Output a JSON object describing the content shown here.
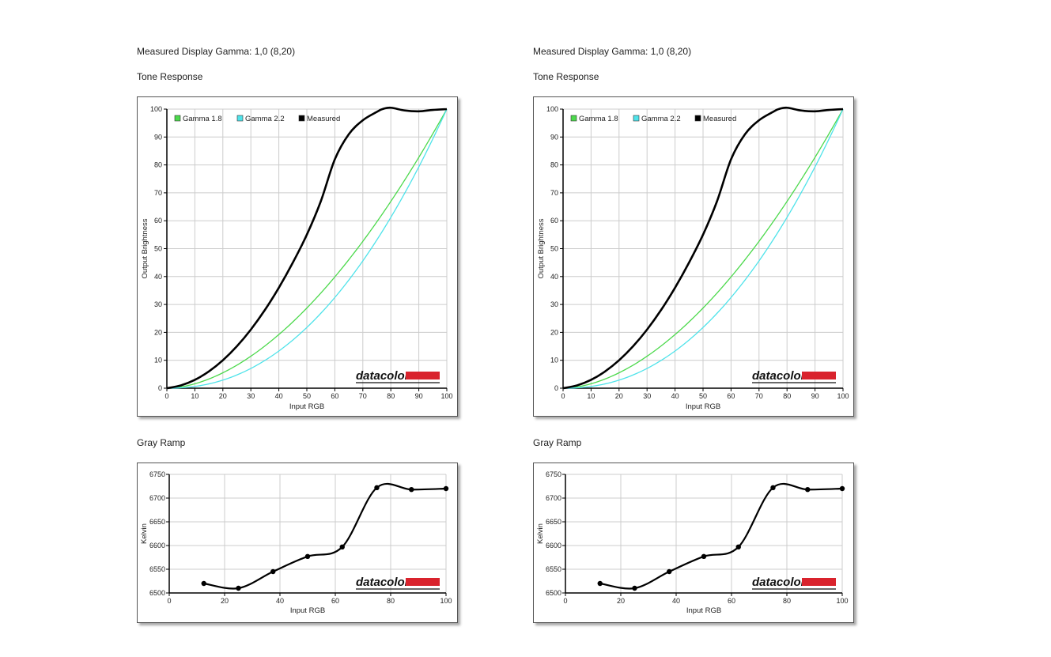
{
  "panels": [
    {
      "gamma_text": "Measured Display Gamma: 1,0 (8,20)",
      "tone_title": "Tone Response",
      "gray_title": "Gray Ramp"
    },
    {
      "gamma_text": "Measured Display Gamma: 1,0 (8,20)",
      "tone_title": "Tone Response",
      "gray_title": "Gray Ramp"
    }
  ],
  "logo_text": "datacolor",
  "colors": {
    "gamma18": "#4cd94c",
    "gamma22": "#4fe3ea",
    "measured": "#000000",
    "grid": "#cccccc",
    "logo_red": "#d9232d"
  },
  "chart_data": [
    {
      "type": "line",
      "xlabel": "Input RGB",
      "ylabel": "Output Brightness",
      "xlim": [
        0,
        100
      ],
      "ylim": [
        0,
        100
      ],
      "xticks": [
        0,
        10,
        20,
        30,
        40,
        50,
        60,
        70,
        80,
        90,
        100
      ],
      "yticks": [
        0,
        10,
        20,
        30,
        40,
        50,
        60,
        70,
        80,
        90,
        100
      ],
      "grid": true,
      "legend_position": "top-left",
      "series": [
        {
          "name": "Gamma 1.8",
          "gamma": 1.8
        },
        {
          "name": "Gamma 2.2",
          "gamma": 2.2
        },
        {
          "name": "Measured",
          "x": [
            0,
            5,
            10,
            15,
            20,
            25,
            30,
            35,
            40,
            45,
            50,
            55,
            60,
            65,
            70,
            75,
            77,
            80,
            85,
            90,
            95,
            100
          ],
          "y": [
            0,
            1,
            3,
            6,
            10,
            15,
            21,
            28,
            36,
            45,
            55,
            67,
            82,
            91,
            96,
            99,
            100,
            100.5,
            99.5,
            99.2,
            99.7,
            100
          ]
        }
      ]
    },
    {
      "type": "line",
      "xlabel": "Input RGB",
      "ylabel": "Kelvin",
      "xlim": [
        0,
        100
      ],
      "ylim": [
        6500,
        6750
      ],
      "xticks": [
        0,
        20,
        40,
        60,
        80,
        100
      ],
      "yticks": [
        6500,
        6550,
        6600,
        6650,
        6700,
        6750
      ],
      "grid": true,
      "series": [
        {
          "x": [
            12.5,
            25,
            37.5,
            50,
            62.5,
            75,
            87.5,
            100
          ],
          "y": [
            6520,
            6510,
            6545,
            6577,
            6597,
            6722,
            6718,
            6720
          ]
        }
      ]
    }
  ]
}
